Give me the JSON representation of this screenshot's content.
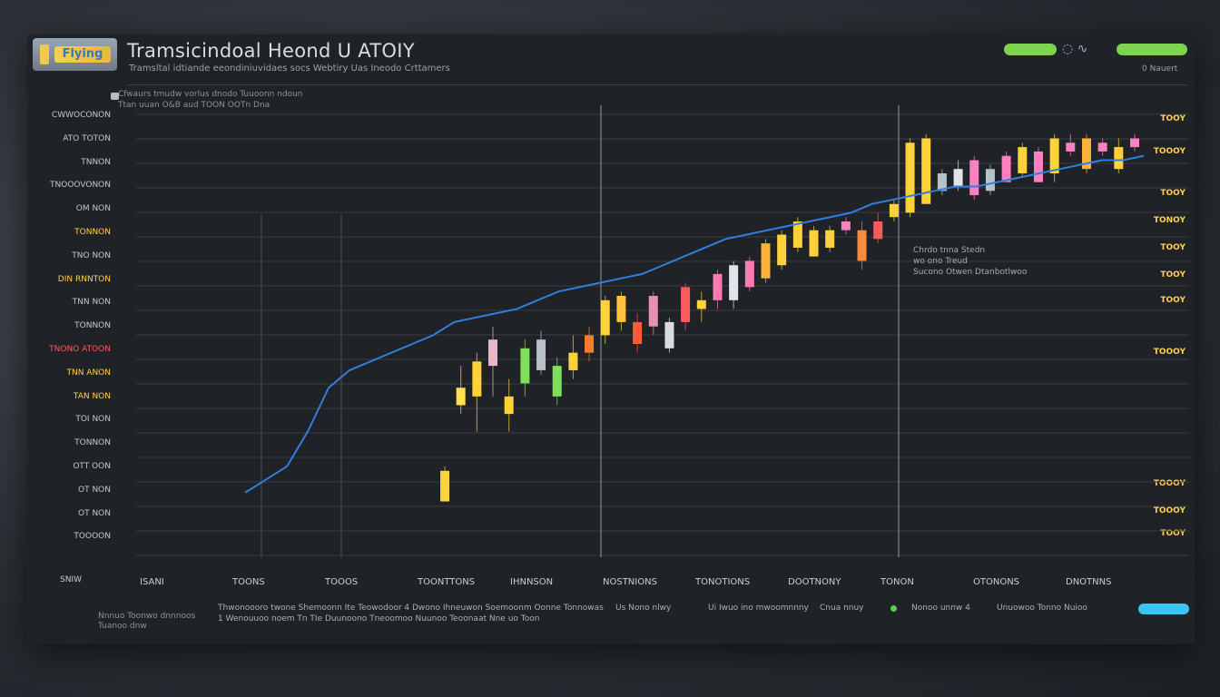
{
  "header": {
    "logo_text": "Flying",
    "title": "Tramsicindoal Heond U ATOIY",
    "subtitle": "Tramsltal idtiande eeondiniuvidaes socs Webtiry Uas Ineodo Crttamers",
    "status": "0 Nauert",
    "icons_text": "◌ ∿",
    "accent_green": "#7ed44f",
    "accent_blue": "#39c5f0"
  },
  "legend": {
    "line1": "Cfwaurs tmudw vorlus   dnodo   Tuuoonn   ndoun",
    "line2": "Ttan   uuan   O&B   aud   TOON   OOTn   Dna"
  },
  "annotation": {
    "line1": "Chrdo tnna Stedn",
    "line2": "wo ono Treud",
    "line3": "Sucono Otwen Dtanbotlwoo"
  },
  "chart_data": {
    "type": "bar",
    "title": "Tramsicindoal Heond U ATOIY",
    "xlabel": "SNIW",
    "ylabel": "",
    "y_tick_labels": [
      "CWWOCONON",
      "ATO TOTON",
      "TNNON",
      "TNOOOVONON",
      "OM NON",
      "TONNON",
      "TNO NON",
      "DIN RNNTON",
      "TNN NON",
      "TONNON",
      "TNONO ATOON",
      "TNN ANON",
      "TAN NON",
      "TOI NON",
      "TONNON",
      "OTT OON",
      "OT NON",
      "OT NON",
      "TOOOON"
    ],
    "y_tick_styles": [
      "n",
      "n",
      "n",
      "n",
      "n",
      "hl",
      "n",
      "hl",
      "n",
      "n",
      "red",
      "hl",
      "hl",
      "n",
      "n",
      "n",
      "n",
      "n",
      "n"
    ],
    "right_tick_labels": [
      "TOOY",
      "TOOOY",
      "TOOY",
      "TONOY",
      "TOOY",
      "TOOY",
      "TOOY",
      "TOOOY",
      "TOOOY",
      "TOOOY",
      "TOOY"
    ],
    "x_categories": [
      "ISANI",
      "TOONS",
      "TOOOS",
      "TOONTTONS",
      "IHNNSON",
      "NOSTNIONS",
      "TONOTIONS",
      "DOOTNONY",
      "TONON",
      "OTONONS",
      "DNOTNNS"
    ],
    "footer_items": [
      "Thwonoooro twone Shemoonn Ite Teowodoor 4 Dwono Ihneuwon Soemoonm Oonne Tonnowas",
      "Us Nono nlwy",
      "Ui Iwuo ino mwoomnnny",
      "Cnua nnuy",
      "Nonoo unnw 4",
      "Unuowoo Tonno Nuioo"
    ],
    "footer_line2": "1 Wenouuoo noem Tn TIe Duunoono Tneoomoo Nuunoo Teoonaat Nne uo Toon",
    "bottom_left": [
      "Nnnuo Toonwo dnnnoos",
      "Tuanoo dnw"
    ],
    "ylim": [
      0,
      100
    ],
    "series": [
      {
        "name": "",
        "values": []
      }
    ],
    "candles": [
      {
        "o": 21,
        "c": 14,
        "h": 22,
        "l": 14,
        "color": "#ffd23a"
      },
      {
        "o": 40,
        "c": 36,
        "h": 45,
        "l": 34,
        "color": "#ffe14a"
      },
      {
        "o": 46,
        "c": 38,
        "h": 48,
        "l": 30,
        "color": "#ffd23a"
      },
      {
        "o": 51,
        "c": 45,
        "h": 54,
        "l": 38,
        "color": "#e8b8c8"
      },
      {
        "o": 38,
        "c": 34,
        "h": 42,
        "l": 30,
        "color": "#ffd23a"
      },
      {
        "o": 49,
        "c": 41,
        "h": 51,
        "l": 38,
        "color": "#7ee05a"
      },
      {
        "o": 51,
        "c": 44,
        "h": 53,
        "l": 43,
        "color": "#b8c0c8"
      },
      {
        "o": 45,
        "c": 38,
        "h": 47,
        "l": 36,
        "color": "#7ee05a"
      },
      {
        "o": 44,
        "c": 48,
        "h": 52,
        "l": 42,
        "color": "#ffd23a"
      },
      {
        "o": 48,
        "c": 52,
        "h": 54,
        "l": 46,
        "color": "#ff7a2a"
      },
      {
        "o": 52,
        "c": 60,
        "h": 61,
        "l": 50,
        "color": "#ffd23a"
      },
      {
        "o": 55,
        "c": 61,
        "h": 62,
        "l": 53,
        "color": "#ffc23a"
      },
      {
        "o": 55,
        "c": 50,
        "h": 57,
        "l": 48,
        "color": "#ff5a3a"
      },
      {
        "o": 61,
        "c": 54,
        "h": 62,
        "l": 52,
        "color": "#e890b0"
      },
      {
        "o": 55,
        "c": 49,
        "h": 56,
        "l": 48,
        "color": "#d8dce2"
      },
      {
        "o": 63,
        "c": 55,
        "h": 64,
        "l": 53,
        "color": "#ff5a5a"
      },
      {
        "o": 60,
        "c": 58,
        "h": 62,
        "l": 55,
        "color": "#ffd23a"
      },
      {
        "o": 66,
        "c": 60,
        "h": 67,
        "l": 58,
        "color": "#ff7ab0"
      },
      {
        "o": 68,
        "c": 60,
        "h": 69,
        "l": 58,
        "color": "#e0e4ea"
      },
      {
        "o": 69,
        "c": 63,
        "h": 70,
        "l": 62,
        "color": "#ff7ab0"
      },
      {
        "o": 73,
        "c": 65,
        "h": 74,
        "l": 64,
        "color": "#ffb23a"
      },
      {
        "o": 75,
        "c": 68,
        "h": 76,
        "l": 67,
        "color": "#ffd23a"
      },
      {
        "o": 78,
        "c": 72,
        "h": 79,
        "l": 71,
        "color": "#ffd23a"
      },
      {
        "o": 76,
        "c": 70,
        "h": 77,
        "l": 70,
        "color": "#ffd23a"
      },
      {
        "o": 76,
        "c": 72,
        "h": 77,
        "l": 71,
        "color": "#ffd23a"
      },
      {
        "o": 78,
        "c": 76,
        "h": 79,
        "l": 75,
        "color": "#ff80c0"
      },
      {
        "o": 76,
        "c": 69,
        "h": 78,
        "l": 67,
        "color": "#ff8a3a"
      },
      {
        "o": 78,
        "c": 74,
        "h": 80,
        "l": 73,
        "color": "#ff5a5a"
      },
      {
        "o": 82,
        "c": 79,
        "h": 83,
        "l": 78,
        "color": "#ffd23a"
      },
      {
        "o": 96,
        "c": 80,
        "h": 97,
        "l": 79,
        "color": "#ffd23a"
      },
      {
        "o": 97,
        "c": 82,
        "h": 98,
        "l": 82,
        "color": "#ffd23a"
      },
      {
        "o": 89,
        "c": 85,
        "h": 90,
        "l": 84,
        "color": "#b8c0c8"
      },
      {
        "o": 90,
        "c": 86,
        "h": 92,
        "l": 85,
        "color": "#e0e4ea"
      },
      {
        "o": 92,
        "c": 84,
        "h": 93,
        "l": 83,
        "color": "#ff80c0"
      },
      {
        "o": 90,
        "c": 85,
        "h": 91,
        "l": 84,
        "color": "#b8c0c8"
      },
      {
        "o": 93,
        "c": 87,
        "h": 94,
        "l": 87,
        "color": "#ff80c0"
      },
      {
        "o": 95,
        "c": 89,
        "h": 96,
        "l": 88,
        "color": "#ffd23a"
      },
      {
        "o": 94,
        "c": 87,
        "h": 95,
        "l": 87,
        "color": "#ff80c0"
      },
      {
        "o": 97,
        "c": 89,
        "h": 98,
        "l": 87,
        "color": "#ffd23a"
      },
      {
        "o": 96,
        "c": 94,
        "h": 98,
        "l": 93,
        "color": "#ff80c0"
      },
      {
        "o": 97,
        "c": 90,
        "h": 98,
        "l": 89,
        "color": "#ffb23a"
      },
      {
        "o": 96,
        "c": 94,
        "h": 97,
        "l": 93,
        "color": "#ff80c0"
      },
      {
        "o": 95,
        "c": 90,
        "h": 97,
        "l": 89,
        "color": "#ffd23a"
      },
      {
        "o": 97,
        "c": 95,
        "h": 98,
        "l": 94,
        "color": "#ff80c0"
      }
    ],
    "trend_line": [
      16,
      19,
      22,
      30,
      40,
      44,
      46,
      48,
      50,
      52,
      55,
      56,
      57,
      58,
      60,
      62,
      63,
      64,
      65,
      66,
      68,
      70,
      72,
      74,
      75,
      76,
      77,
      78,
      79,
      80,
      82,
      83,
      84,
      85,
      86,
      86,
      87,
      88,
      89,
      90,
      91,
      92,
      92,
      93
    ],
    "grid": true,
    "legend_position": "top-left"
  }
}
